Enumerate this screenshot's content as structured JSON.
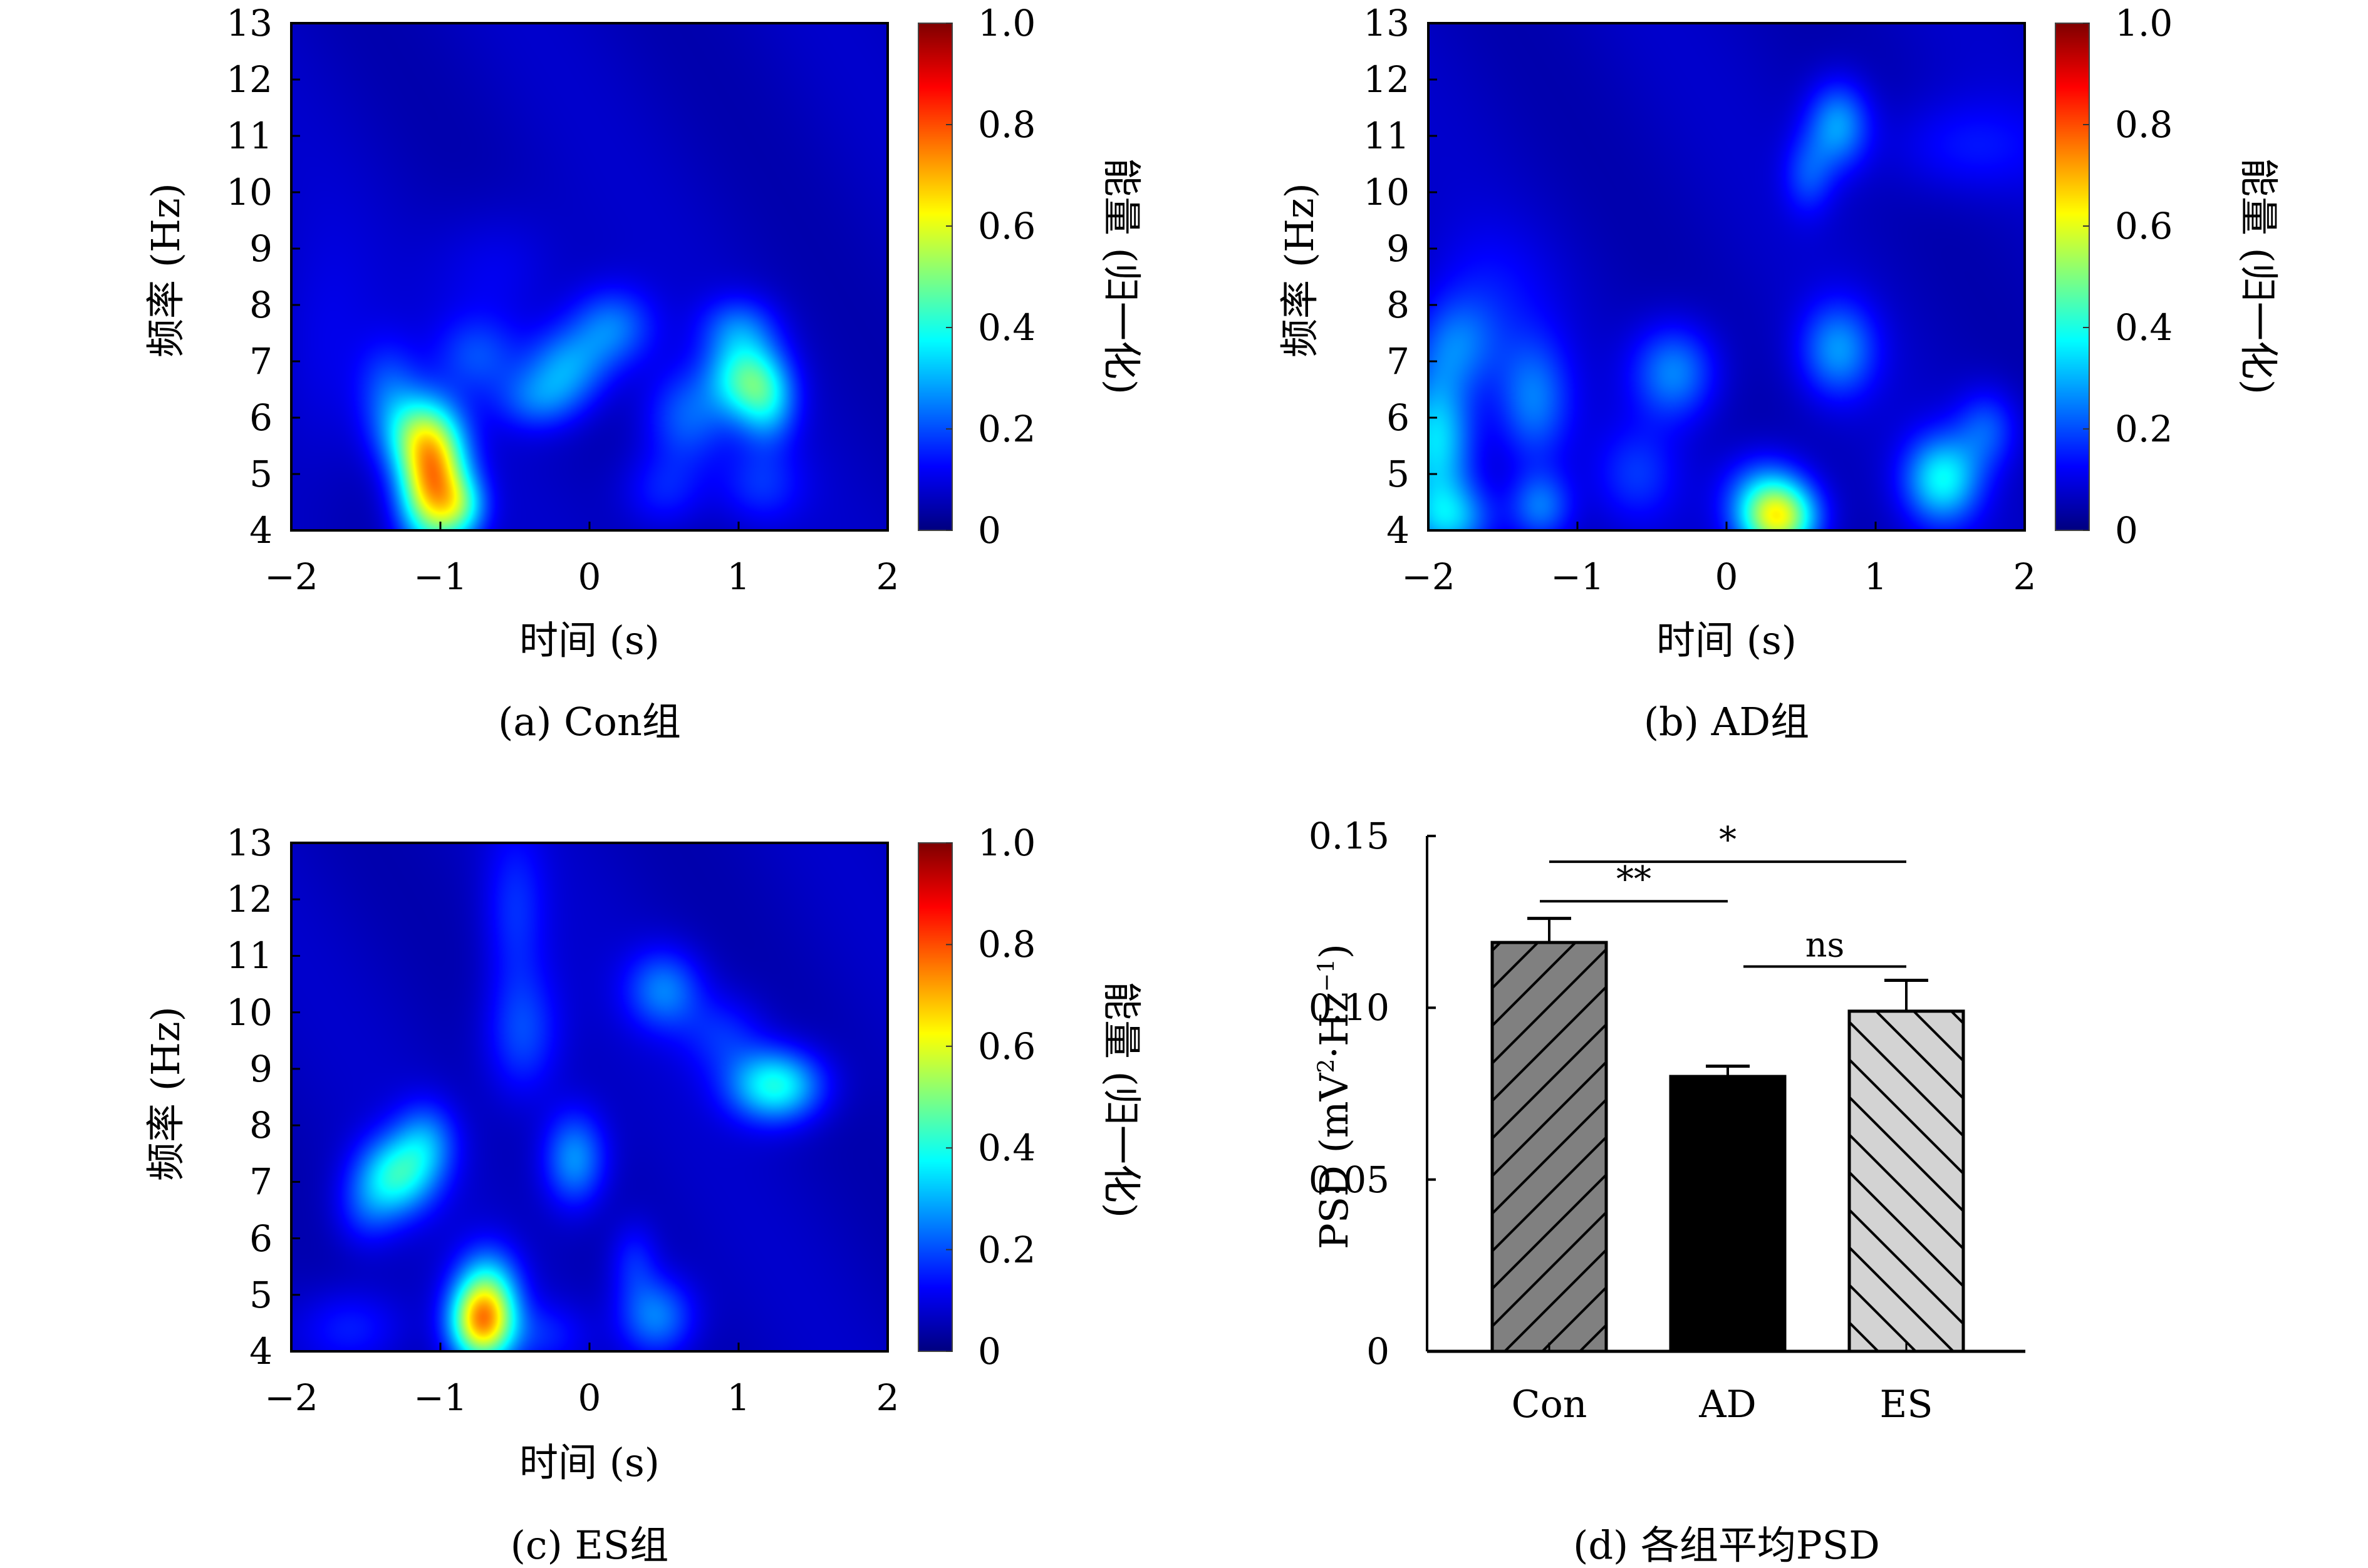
{
  "chart_data": [
    {
      "id": "a",
      "type": "heatmap",
      "caption": "(a) Con组",
      "xlabel": "时间 (s)",
      "ylabel": "频率 (Hz)",
      "colorbar_label": "能量 (归一化)",
      "colormap": "jet",
      "x_range": [
        -2,
        2
      ],
      "y_range": [
        4,
        13
      ],
      "c_range": [
        0,
        1.0
      ],
      "x_ticks": [
        "−2",
        "−1",
        "0",
        "1",
        "2"
      ],
      "x_tick_values": [
        -2,
        -1,
        0,
        1,
        2
      ],
      "y_ticks": [
        "4",
        "5",
        "6",
        "7",
        "8",
        "9",
        "10",
        "11",
        "12",
        "13"
      ],
      "y_tick_values": [
        4,
        5,
        6,
        7,
        8,
        9,
        10,
        11,
        12,
        13
      ],
      "c_ticks": [
        "0",
        "0.2",
        "0.4",
        "0.6",
        "0.8",
        "1.0"
      ],
      "c_tick_values": [
        0,
        0.2,
        0.4,
        0.6,
        0.8,
        1.0
      ],
      "background_level": 0.06,
      "peaks": [
        {
          "t": -1.05,
          "f": 4.8,
          "amp": 0.62,
          "st": 0.16,
          "sf": 0.75
        },
        {
          "t": -1.15,
          "f": 5.7,
          "amp": 0.28,
          "st": 0.18,
          "sf": 0.5
        },
        {
          "t": -0.85,
          "f": 4.4,
          "amp": 0.2,
          "st": 0.12,
          "sf": 0.4
        },
        {
          "t": -1.35,
          "f": 6.5,
          "amp": 0.12,
          "st": 0.15,
          "sf": 0.6
        },
        {
          "t": -0.75,
          "f": 7.1,
          "amp": 0.12,
          "st": 0.2,
          "sf": 0.5
        },
        {
          "t": -0.15,
          "f": 6.9,
          "amp": 0.2,
          "st": 0.2,
          "sf": 0.5
        },
        {
          "t": 0.15,
          "f": 7.6,
          "amp": 0.18,
          "st": 0.2,
          "sf": 0.5
        },
        {
          "t": -0.35,
          "f": 6.3,
          "amp": 0.14,
          "st": 0.2,
          "sf": 0.4
        },
        {
          "t": 0.65,
          "f": 6.0,
          "amp": 0.15,
          "st": 0.2,
          "sf": 0.6
        },
        {
          "t": 1.05,
          "f": 6.7,
          "amp": 0.32,
          "st": 0.18,
          "sf": 0.5
        },
        {
          "t": 1.2,
          "f": 6.2,
          "amp": 0.18,
          "st": 0.14,
          "sf": 0.5
        },
        {
          "t": 1.0,
          "f": 7.6,
          "amp": 0.14,
          "st": 0.18,
          "sf": 0.4
        },
        {
          "t": 0.5,
          "f": 4.7,
          "amp": 0.1,
          "st": 0.2,
          "sf": 0.5
        },
        {
          "t": 1.15,
          "f": 4.8,
          "amp": 0.1,
          "st": 0.2,
          "sf": 0.5
        },
        {
          "t": -0.6,
          "f": 8.6,
          "amp": 0.06,
          "st": 0.3,
          "sf": 0.8
        },
        {
          "t": -1.8,
          "f": 7.0,
          "amp": 0.05,
          "st": 0.25,
          "sf": 1.5
        }
      ]
    },
    {
      "id": "b",
      "type": "heatmap",
      "caption": "(b) AD组",
      "xlabel": "时间 (s)",
      "ylabel": "频率 (Hz)",
      "colorbar_label": "能量 (归一化)",
      "colormap": "jet",
      "x_range": [
        -2,
        2
      ],
      "y_range": [
        4,
        13
      ],
      "c_range": [
        0,
        1.0
      ],
      "x_ticks": [
        "−2",
        "−1",
        "0",
        "1",
        "2"
      ],
      "x_tick_values": [
        -2,
        -1,
        0,
        1,
        2
      ],
      "y_ticks": [
        "4",
        "5",
        "6",
        "7",
        "8",
        "9",
        "10",
        "11",
        "12",
        "13"
      ],
      "y_tick_values": [
        4,
        5,
        6,
        7,
        8,
        9,
        10,
        11,
        12,
        13
      ],
      "c_ticks": [
        "0",
        "0.2",
        "0.4",
        "0.6",
        "0.8",
        "1.0"
      ],
      "c_tick_values": [
        0,
        0.2,
        0.4,
        0.6,
        0.8,
        1.0
      ],
      "background_level": 0.06,
      "peaks": [
        {
          "t": 0.35,
          "f": 4.2,
          "amp": 0.5,
          "st": 0.18,
          "sf": 0.45
        },
        {
          "t": 0.25,
          "f": 4.7,
          "amp": 0.15,
          "st": 0.2,
          "sf": 0.5
        },
        {
          "t": -1.95,
          "f": 5.6,
          "amp": 0.3,
          "st": 0.18,
          "sf": 0.9
        },
        {
          "t": -1.85,
          "f": 4.2,
          "amp": 0.22,
          "st": 0.2,
          "sf": 0.45
        },
        {
          "t": -1.25,
          "f": 4.4,
          "amp": 0.18,
          "st": 0.15,
          "sf": 0.45
        },
        {
          "t": -1.3,
          "f": 6.3,
          "amp": 0.18,
          "st": 0.18,
          "sf": 0.8
        },
        {
          "t": -1.8,
          "f": 7.3,
          "amp": 0.15,
          "st": 0.2,
          "sf": 0.6
        },
        {
          "t": -0.35,
          "f": 6.8,
          "amp": 0.2,
          "st": 0.2,
          "sf": 0.6
        },
        {
          "t": -0.6,
          "f": 5.0,
          "amp": 0.1,
          "st": 0.2,
          "sf": 0.6
        },
        {
          "t": 0.75,
          "f": 7.2,
          "amp": 0.2,
          "st": 0.18,
          "sf": 0.6
        },
        {
          "t": 0.75,
          "f": 11.2,
          "amp": 0.22,
          "st": 0.15,
          "sf": 0.55
        },
        {
          "t": 0.55,
          "f": 10.3,
          "amp": 0.12,
          "st": 0.12,
          "sf": 0.5
        },
        {
          "t": 1.6,
          "f": 10.8,
          "amp": 0.08,
          "st": 0.4,
          "sf": 0.6
        },
        {
          "t": 1.45,
          "f": 4.9,
          "amp": 0.3,
          "st": 0.18,
          "sf": 0.55
        },
        {
          "t": 1.75,
          "f": 5.8,
          "amp": 0.14,
          "st": 0.15,
          "sf": 0.5
        },
        {
          "t": -1.6,
          "f": 8.3,
          "amp": 0.06,
          "st": 0.3,
          "sf": 0.8
        }
      ]
    },
    {
      "id": "c",
      "type": "heatmap",
      "caption": "(c) ES组",
      "xlabel": "时间 (s)",
      "ylabel": "频率 (Hz)",
      "colorbar_label": "能量 (归一化)",
      "colormap": "jet",
      "x_range": [
        -2,
        2
      ],
      "y_range": [
        4,
        13
      ],
      "c_range": [
        0,
        1.0
      ],
      "x_ticks": [
        "−2",
        "−1",
        "0",
        "1",
        "2"
      ],
      "x_tick_values": [
        -2,
        -1,
        0,
        1,
        2
      ],
      "y_ticks": [
        "4",
        "5",
        "6",
        "7",
        "8",
        "9",
        "10",
        "11",
        "12",
        "13"
      ],
      "y_tick_values": [
        4,
        5,
        6,
        7,
        8,
        9,
        10,
        11,
        12,
        13
      ],
      "c_ticks": [
        "0",
        "0.2",
        "0.4",
        "0.6",
        "0.8",
        "1.0"
      ],
      "c_tick_values": [
        0,
        0.2,
        0.4,
        0.6,
        0.8,
        1.0
      ],
      "background_level": 0.06,
      "peaks": [
        {
          "t": -0.72,
          "f": 4.5,
          "amp": 0.6,
          "st": 0.15,
          "sf": 0.5
        },
        {
          "t": -0.68,
          "f": 5.2,
          "amp": 0.2,
          "st": 0.15,
          "sf": 0.5
        },
        {
          "t": -1.3,
          "f": 7.1,
          "amp": 0.3,
          "st": 0.18,
          "sf": 0.5
        },
        {
          "t": -1.1,
          "f": 7.7,
          "amp": 0.18,
          "st": 0.15,
          "sf": 0.5
        },
        {
          "t": -1.5,
          "f": 6.5,
          "amp": 0.1,
          "st": 0.15,
          "sf": 0.5
        },
        {
          "t": -0.1,
          "f": 7.4,
          "amp": 0.22,
          "st": 0.15,
          "sf": 0.6
        },
        {
          "t": -0.45,
          "f": 9.6,
          "amp": 0.14,
          "st": 0.18,
          "sf": 0.8
        },
        {
          "t": -0.5,
          "f": 11.8,
          "amp": 0.1,
          "st": 0.15,
          "sf": 1.0
        },
        {
          "t": 0.5,
          "f": 10.4,
          "amp": 0.18,
          "st": 0.18,
          "sf": 0.5
        },
        {
          "t": 0.9,
          "f": 9.6,
          "amp": 0.1,
          "st": 0.2,
          "sf": 0.5
        },
        {
          "t": 1.25,
          "f": 8.7,
          "amp": 0.34,
          "st": 0.22,
          "sf": 0.45
        },
        {
          "t": 0.45,
          "f": 4.6,
          "amp": 0.2,
          "st": 0.18,
          "sf": 0.5
        },
        {
          "t": 0.3,
          "f": 5.6,
          "amp": 0.1,
          "st": 0.12,
          "sf": 0.5
        },
        {
          "t": -1.6,
          "f": 4.4,
          "amp": 0.1,
          "st": 0.25,
          "sf": 0.5
        },
        {
          "t": -0.3,
          "f": 4.3,
          "amp": 0.08,
          "st": 0.2,
          "sf": 0.4
        }
      ]
    },
    {
      "id": "d",
      "type": "bar",
      "caption": "(d) 各组平均PSD",
      "title": "",
      "xlabel": "",
      "ylabel": "PSD (mV²·Hz⁻¹)",
      "ylabel_main": "PSD (mV",
      "ylabel_sup1": "2",
      "ylabel_mid": "·Hz",
      "ylabel_sup2": "−1",
      "ylabel_end": ")",
      "categories": [
        "Con",
        "AD",
        "ES"
      ],
      "values": [
        0.119,
        0.08,
        0.099
      ],
      "errors": [
        0.007,
        0.003,
        0.009
      ],
      "fills": [
        "#808080",
        "#000000",
        "#d3d3d3"
      ],
      "hatches": [
        "forward",
        "none",
        "backward"
      ],
      "ylim": [
        0,
        0.15
      ],
      "y_ticks": [
        "0",
        "0.05",
        "0.10",
        "0.15"
      ],
      "y_tick_values": [
        0,
        0.05,
        0.1,
        0.15
      ],
      "significance": [
        {
          "from": "Con",
          "to": "AD",
          "label": "**",
          "level": 0.131
        },
        {
          "from": "Con",
          "to": "ES",
          "label": "*",
          "level": 0.1425
        },
        {
          "from": "AD",
          "to": "ES",
          "label": "ns",
          "level": 0.112
        }
      ]
    }
  ]
}
